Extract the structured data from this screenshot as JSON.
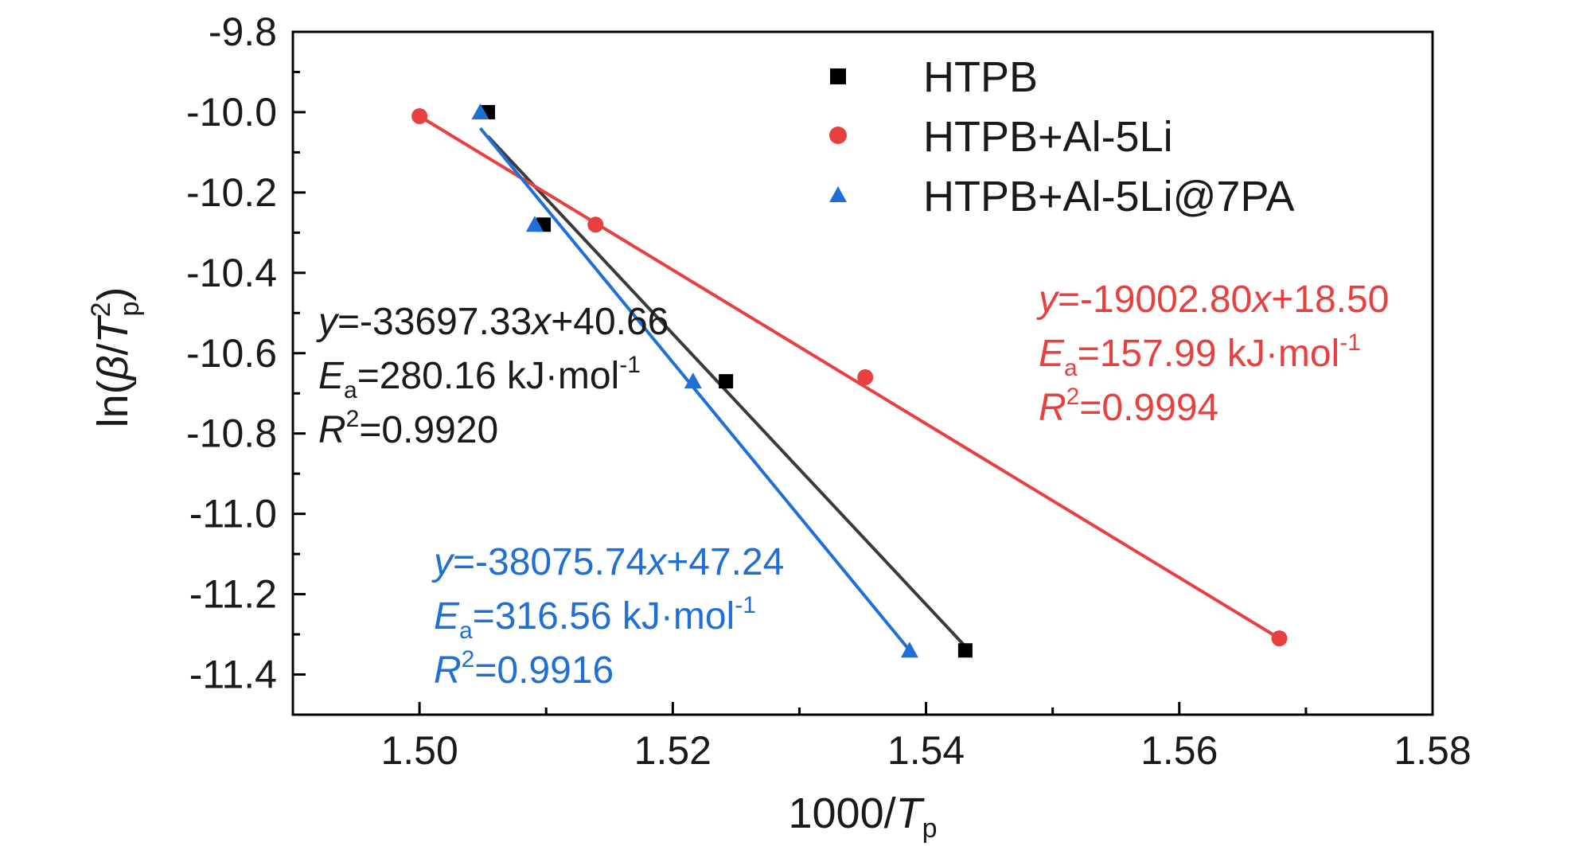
{
  "chart_data": {
    "type": "scatter",
    "xlabel": {
      "main": "1000/",
      "var": "T",
      "sub": "p"
    },
    "ylabel": {
      "pre": "ln(",
      "beta": "β",
      "slash": "/",
      "var": "T",
      "sup": "2",
      "sub": "p",
      "post": ")"
    },
    "xlim": [
      1.49,
      1.58
    ],
    "ylim": [
      -11.5,
      -9.8
    ],
    "xticks": [
      1.5,
      1.52,
      1.54,
      1.56,
      1.58
    ],
    "xtick_labels": [
      "1.50",
      "1.52",
      "1.54",
      "1.56",
      "1.58"
    ],
    "yticks": [
      -9.8,
      -10.0,
      -10.2,
      -10.4,
      -10.6,
      -10.8,
      -11.0,
      -11.2,
      -11.4
    ],
    "ytick_labels": [
      "-9.8",
      "-10.0",
      "-10.2",
      "-10.4",
      "-10.6",
      "-10.8",
      "-11.0",
      "-11.2",
      "-11.4"
    ],
    "grid": false,
    "legend_position": "top-right",
    "series": [
      {
        "name": "HTPB",
        "color": "#000000",
        "line_color": "#3a3a3a",
        "marker": "square",
        "x": [
          1.5054,
          1.5098,
          1.5242,
          1.5431
        ],
        "y": [
          -10.0,
          -10.28,
          -10.67,
          -11.34
        ],
        "fit": {
          "slope": -33697.33,
          "intercept": 40.66,
          "x_range": [
            1.5054,
            1.5431
          ],
          "y_range": [
            -10.06,
            -11.33
          ]
        },
        "equation": {
          "y": "y",
          "eq_mid": "=-33697.33",
          "x": "x",
          "eq_end": "+40.66"
        },
        "ea": {
          "E": "E",
          "sub": "a",
          "val": "=280.16 kJ·mol",
          "sup": "-1"
        },
        "r2": {
          "R": "R",
          "sup": "2",
          "val": "=0.9920"
        }
      },
      {
        "name": "HTPB+Al-5Li",
        "color": "#e8403f",
        "line_color": "#e8403f",
        "marker": "circle",
        "x": [
          1.5,
          1.5139,
          1.5352,
          1.5679
        ],
        "y": [
          -10.01,
          -10.28,
          -10.66,
          -11.31
        ],
        "fit": {
          "slope": -19002.8,
          "intercept": 18.5,
          "x_range": [
            1.5,
            1.5679
          ],
          "y_range": [
            -10.01,
            -11.31
          ]
        },
        "equation": {
          "y": "y",
          "eq_mid": "=-19002.80",
          "x": "x",
          "eq_end": "+18.50"
        },
        "ea": {
          "E": "E",
          "sub": "a",
          "val": "=157.99 kJ·mol",
          "sup": "-1"
        },
        "r2": {
          "R": "R",
          "sup": "2",
          "val": "=0.9994"
        }
      },
      {
        "name": "HTPB+Al-5Li@7PA",
        "color": "#1f6fd6",
        "line_color": "#1f6fd6",
        "marker": "triangle",
        "x": [
          1.5048,
          1.5091,
          1.5216,
          1.5387
        ],
        "y": [
          -10.0,
          -10.28,
          -10.67,
          -11.34
        ],
        "fit": {
          "slope": -38075.74,
          "intercept": 47.24,
          "x_range": [
            1.5048,
            1.5387
          ],
          "y_range": [
            -10.04,
            -11.34
          ]
        },
        "equation": {
          "y": "y",
          "eq_mid": "=-38075.74",
          "x": "x",
          "eq_end": "+47.24"
        },
        "ea": {
          "E": "E",
          "sub": "a",
          "val": "=316.56 kJ·mol",
          "sup": "-1"
        },
        "r2": {
          "R": "R",
          "sup": "2",
          "val": "=0.9916"
        }
      }
    ]
  }
}
